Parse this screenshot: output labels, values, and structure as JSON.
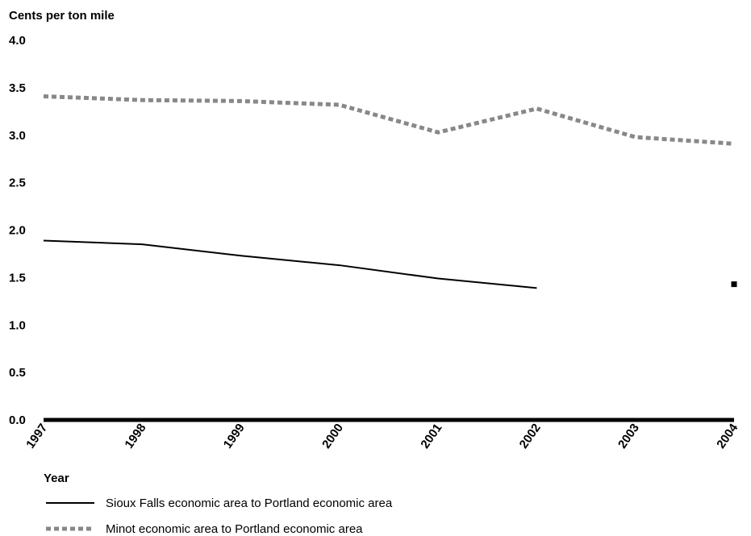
{
  "chart_data": {
    "type": "line",
    "ylabel": "Cents per ton mile",
    "xlabel": "Year",
    "x": [
      "1997",
      "1998",
      "1999",
      "2000",
      "2001",
      "2002",
      "2003",
      "2004"
    ],
    "ylim": [
      0,
      4.0
    ],
    "yticks": [
      "0.0",
      "0.5",
      "1.0",
      "1.5",
      "2.0",
      "2.5",
      "3.0",
      "3.5",
      "4.0"
    ],
    "grid": false,
    "legend_position": "bottom-left",
    "series": [
      {
        "name": "Sioux Falls economic area to Portland economic area",
        "style": "solid",
        "color": "#000000",
        "values": [
          1.89,
          1.85,
          1.73,
          1.63,
          1.49,
          1.39,
          null,
          1.43
        ]
      },
      {
        "name": "Minot economic area to Portland economic area",
        "style": "dotted",
        "color": "#888888",
        "values": [
          3.41,
          3.37,
          3.36,
          3.32,
          3.03,
          3.28,
          2.98,
          2.91
        ]
      }
    ]
  }
}
